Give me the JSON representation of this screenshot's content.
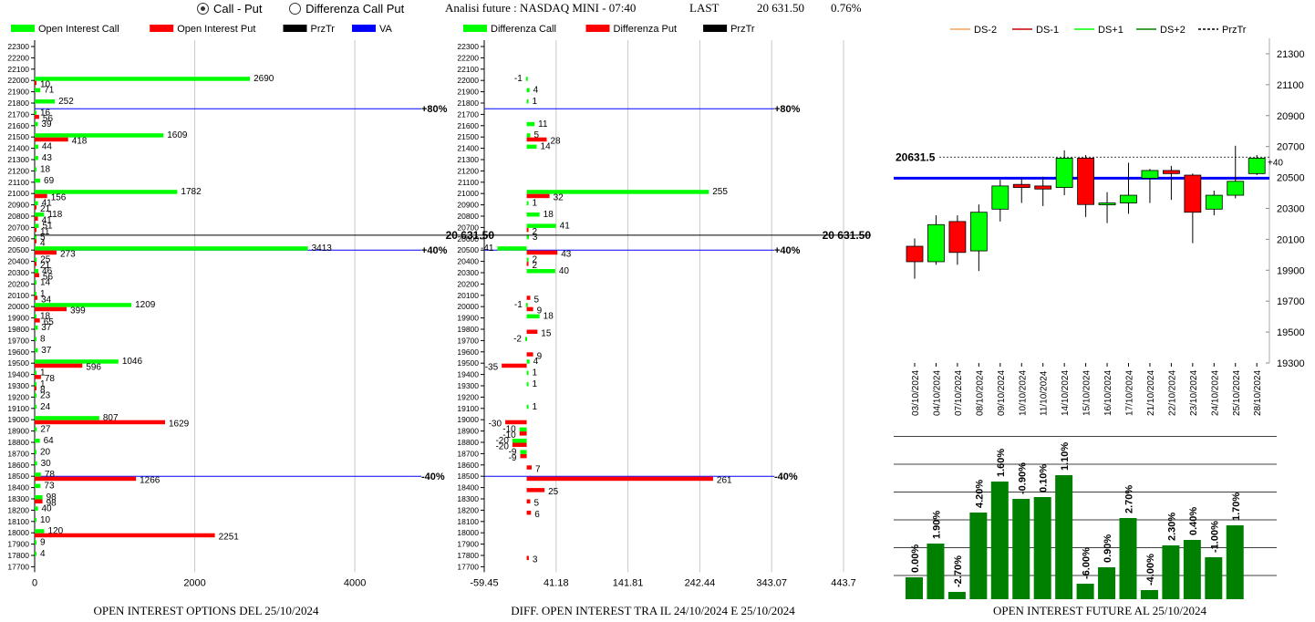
{
  "controls": {
    "radio_call_put": "Call - Put",
    "radio_diff": "Differenza Call Put",
    "selected": "call_put"
  },
  "header": {
    "title": "Analisi future : NASDAQ MINI - 07:40",
    "last_label": "LAST",
    "last_value": "20 631.50",
    "change": "0.76%"
  },
  "colors": {
    "green": "#00ff00",
    "red": "#ff0000",
    "blue": "#0000ff",
    "dark_green": "#008000",
    "black": "#000000"
  },
  "chart_data": [
    {
      "id": "oi_options",
      "type": "bar",
      "orientation": "horizontal",
      "title": "OPEN INTEREST OPTIONS DEL 25/10/2024",
      "legend": [
        "Open Interest Call",
        "Open Interest Put",
        "PrzTr",
        "VA"
      ],
      "strike_ticks": [
        22300,
        22200,
        22100,
        22000,
        21900,
        21800,
        21700,
        21600,
        21500,
        21400,
        21300,
        21200,
        21100,
        21000,
        20900,
        20800,
        20700,
        20600,
        20500,
        20400,
        20300,
        20200,
        20100,
        20000,
        19900,
        19800,
        19700,
        19600,
        19500,
        19400,
        19300,
        19200,
        19100,
        19000,
        18900,
        18800,
        18700,
        18600,
        18500,
        18400,
        18300,
        18200,
        18100,
        18000,
        17900,
        17800,
        17700
      ],
      "xlim": [
        0,
        5400
      ],
      "x_ticks": [
        0,
        2000,
        4000
      ],
      "call": [
        [
          22000,
          2690
        ],
        [
          21900,
          71
        ],
        [
          21800,
          252
        ],
        [
          21700,
          16
        ],
        [
          21600,
          39
        ],
        [
          21500,
          1609
        ],
        [
          21400,
          44
        ],
        [
          21300,
          43
        ],
        [
          21200,
          18
        ],
        [
          21100,
          69
        ],
        [
          21000,
          1782
        ],
        [
          20900,
          41
        ],
        [
          20800,
          118
        ],
        [
          20700,
          51
        ],
        [
          20600,
          5
        ],
        [
          20500,
          3413
        ],
        [
          20400,
          25
        ],
        [
          20300,
          46
        ],
        [
          20200,
          14
        ],
        [
          20100,
          1
        ],
        [
          20000,
          1209
        ],
        [
          19900,
          18
        ],
        [
          19800,
          37
        ],
        [
          19700,
          8
        ],
        [
          19600,
          37
        ],
        [
          19500,
          1046
        ],
        [
          19400,
          1
        ],
        [
          19300,
          1
        ],
        [
          19200,
          23
        ],
        [
          19100,
          24
        ],
        [
          19000,
          807
        ],
        [
          18900,
          27
        ],
        [
          18800,
          64
        ],
        [
          18700,
          20
        ],
        [
          18600,
          30
        ],
        [
          18500,
          78
        ],
        [
          18400,
          73
        ],
        [
          18300,
          98
        ],
        [
          18200,
          40
        ],
        [
          18100,
          10
        ],
        [
          18000,
          120
        ],
        [
          17900,
          9
        ],
        [
          17800,
          4
        ]
      ],
      "put": [
        [
          22000,
          10
        ],
        [
          21700,
          56
        ],
        [
          21500,
          418
        ],
        [
          21000,
          156
        ],
        [
          20900,
          21
        ],
        [
          20800,
          41
        ],
        [
          20700,
          11
        ],
        [
          20600,
          4
        ],
        [
          20500,
          273
        ],
        [
          20400,
          21
        ],
        [
          20300,
          56
        ],
        [
          20100,
          34
        ],
        [
          20000,
          399
        ],
        [
          19900,
          65
        ],
        [
          19500,
          596
        ],
        [
          19400,
          78
        ],
        [
          19300,
          8
        ],
        [
          19000,
          1629
        ],
        [
          18500,
          1266
        ],
        [
          18300,
          98
        ],
        [
          18000,
          2251
        ]
      ],
      "przt_label": "20 631.50",
      "va_lines": [
        {
          "strike": 21750,
          "label": "+80%"
        },
        {
          "strike": 20500,
          "label": "+40%"
        },
        {
          "strike": 18500,
          "label": "-40%"
        }
      ]
    },
    {
      "id": "diff_oi",
      "type": "bar",
      "orientation": "horizontal",
      "title": "DIFF. OPEN INTEREST TRA IL 24/10/2024 E 25/10/2024",
      "legend": [
        "Differenza Call",
        "Differenza Put",
        "PrzTr"
      ],
      "xlim": [
        -59.45,
        443.7
      ],
      "x_ticks": [
        -59.45,
        41.18,
        141.81,
        242.44,
        343.07,
        443.7
      ],
      "call": [
        [
          22000,
          -1
        ],
        [
          21900,
          4
        ],
        [
          21800,
          1
        ],
        [
          21600,
          11
        ],
        [
          21500,
          5
        ],
        [
          21400,
          14
        ],
        [
          21000,
          255
        ],
        [
          20900,
          1
        ],
        [
          20800,
          18
        ],
        [
          20700,
          41
        ],
        [
          20600,
          3
        ],
        [
          20500,
          -41
        ],
        [
          20400,
          2
        ],
        [
          20300,
          40
        ],
        [
          20000,
          -1
        ],
        [
          19900,
          18
        ],
        [
          19700,
          -2
        ],
        [
          19500,
          4
        ],
        [
          19400,
          1
        ],
        [
          19300,
          1
        ],
        [
          19100,
          1
        ],
        [
          18900,
          -10
        ],
        [
          18800,
          -20
        ],
        [
          18700,
          -9
        ]
      ],
      "put": [
        [
          21500,
          28
        ],
        [
          21000,
          32
        ],
        [
          20700,
          2
        ],
        [
          20500,
          43
        ],
        [
          20400,
          2
        ],
        [
          20100,
          5
        ],
        [
          20000,
          9
        ],
        [
          19800,
          15
        ],
        [
          19600,
          9
        ],
        [
          19500,
          -35
        ],
        [
          19000,
          -30
        ],
        [
          18900,
          -10
        ],
        [
          18800,
          -20
        ],
        [
          18700,
          -9
        ],
        [
          18600,
          7
        ],
        [
          18500,
          261
        ],
        [
          18400,
          25
        ],
        [
          18300,
          5
        ],
        [
          18200,
          6
        ],
        [
          17800,
          3
        ]
      ],
      "przt_label": "20 631.50",
      "va_lines": [
        {
          "strike": 21750,
          "label": "+80%"
        },
        {
          "strike": 20500,
          "label": "+40%"
        },
        {
          "strike": 18500,
          "label": "-40%"
        }
      ]
    },
    {
      "id": "candles",
      "type": "candlestick",
      "legend": [
        "DS-2",
        "DS-1",
        "DS+1",
        "DS+2",
        "PrzTr"
      ],
      "ylim": [
        19300,
        21400
      ],
      "y_ticks": [
        21300,
        21100,
        20900,
        20700,
        20500,
        20300,
        20100,
        19900,
        19700,
        19500,
        19300
      ],
      "price_label": "20631.5",
      "price": 20631.5,
      "blue_line": 20495,
      "last_change": "+40",
      "candles": [
        {
          "date": "03/10/2024",
          "open": 20055,
          "close": 19955,
          "high": 20105,
          "low": 19845
        },
        {
          "date": "04/10/2024",
          "open": 19955,
          "close": 20195,
          "high": 20255,
          "low": 19935
        },
        {
          "date": "07/10/2024",
          "open": 20215,
          "close": 20015,
          "high": 20255,
          "low": 19935
        },
        {
          "date": "08/10/2024",
          "open": 20025,
          "close": 20275,
          "high": 20325,
          "low": 19895
        },
        {
          "date": "09/10/2024",
          "open": 20295,
          "close": 20445,
          "high": 20485,
          "low": 20215
        },
        {
          "date": "10/10/2024",
          "open": 20455,
          "close": 20435,
          "high": 20495,
          "low": 20335
        },
        {
          "date": "11/10/2024",
          "open": 20445,
          "close": 20425,
          "high": 20505,
          "low": 20315
        },
        {
          "date": "14/10/2024",
          "open": 20435,
          "close": 20625,
          "high": 20675,
          "low": 20385
        },
        {
          "date": "15/10/2024",
          "open": 20625,
          "close": 20325,
          "high": 20645,
          "low": 20245
        },
        {
          "date": "16/10/2024",
          "open": 20325,
          "close": 20335,
          "high": 20405,
          "low": 20205
        },
        {
          "date": "17/10/2024",
          "open": 20335,
          "close": 20385,
          "high": 20595,
          "low": 20265
        },
        {
          "date": "21/10/2024",
          "open": 20495,
          "close": 20545,
          "high": 20555,
          "low": 20335
        },
        {
          "date": "22/10/2024",
          "open": 20545,
          "close": 20525,
          "high": 20575,
          "low": 20355
        },
        {
          "date": "23/10/2024",
          "open": 20515,
          "close": 20275,
          "high": 20525,
          "low": 20075
        },
        {
          "date": "24/10/2024",
          "open": 20295,
          "close": 20385,
          "high": 20415,
          "low": 20255
        },
        {
          "date": "25/10/2024",
          "open": 20385,
          "close": 20475,
          "high": 20705,
          "low": 20365
        },
        {
          "date": "28/10/2024",
          "open": 20525,
          "close": 20625,
          "high": 20645,
          "low": 20515
        }
      ]
    },
    {
      "id": "oi_future",
      "type": "bar",
      "title": "OPEN INTEREST FUTURE AL 25/10/2024",
      "labels": [
        "0.00%",
        "1.90%",
        "-2.70%",
        "4.20%",
        "1.60%",
        "-0.90%",
        "0.10%",
        "1.10%",
        "-6.00%",
        "0.90%",
        "2.70%",
        "-4.00%",
        "2.30%",
        "0.40%",
        "-1.00%",
        "1.70%"
      ],
      "values": [
        24,
        61,
        8,
        95,
        129,
        110,
        112,
        136,
        17,
        35,
        89,
        10,
        59,
        65,
        46,
        81
      ]
    }
  ]
}
